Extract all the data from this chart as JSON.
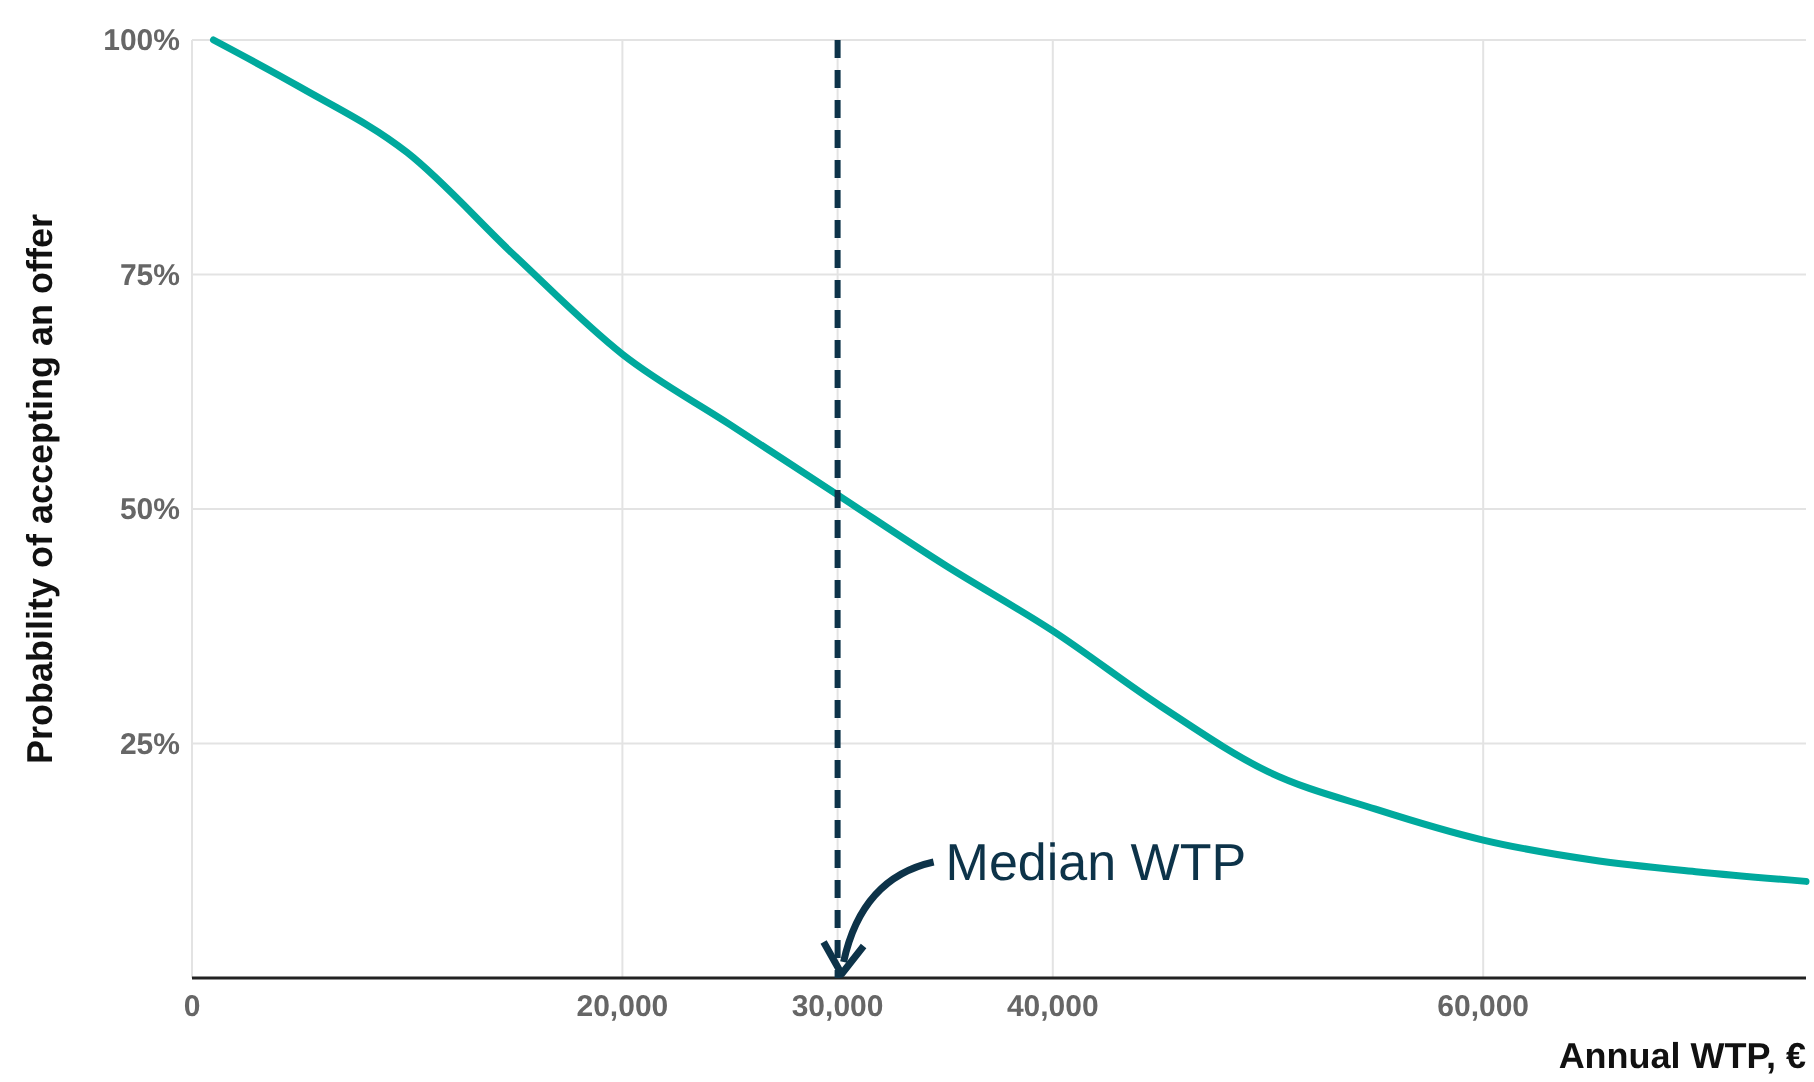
{
  "chart_data": {
    "type": "line",
    "xlabel": "Annual WTP, €",
    "ylabel": "Probability of accepting an offer",
    "x": [
      1000,
      5000,
      10000,
      15000,
      20000,
      25000,
      30000,
      35000,
      40000,
      45000,
      50000,
      55000,
      60000,
      65000,
      70000,
      75000
    ],
    "series": [
      {
        "color": "#00a99d",
        "values": [
          100,
          95,
          88,
          77,
          66.5,
          59,
          51.5,
          44,
          37,
          29,
          22,
          18,
          14.7,
          12.6,
          11.3,
          10.3
        ]
      }
    ],
    "xlim": [
      0,
      75000
    ],
    "ylim": [
      0,
      100
    ],
    "xticks": [
      0,
      {
        "value": 20000,
        "label": "20,000"
      },
      {
        "value": 30000,
        "label": "30,000"
      },
      {
        "value": 40000,
        "label": "40,000"
      },
      {
        "value": 60000,
        "label": "60,000"
      }
    ],
    "yticks": [
      {
        "value": 25,
        "label": "25%"
      },
      {
        "value": 50,
        "label": "50%"
      },
      {
        "value": 75,
        "label": "75%"
      },
      {
        "value": 100,
        "label": "100%"
      }
    ],
    "grid": true,
    "marker": "none",
    "line_style": "solid",
    "ref_lines": [
      {
        "axis": "x",
        "value": 30000,
        "label": "Median WTP",
        "color": "#0d3349",
        "line_style": "dashed"
      }
    ]
  }
}
